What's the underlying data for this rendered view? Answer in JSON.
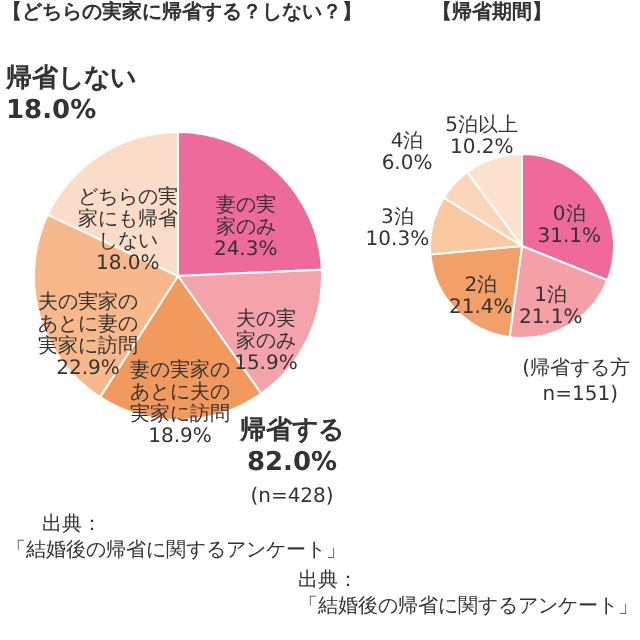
{
  "chart_data": [
    {
      "type": "pie",
      "title": "【どちらの実家に帰省する？しない？】",
      "categories": [
        "妻の実家のみ",
        "夫の実家のみ",
        "妻の実家のあとに夫の実家に訪問",
        "夫の実家のあとに妻の実家に訪問",
        "どちらの実家にも帰省しない"
      ],
      "values": [
        24.3,
        15.9,
        18.9,
        22.9,
        18.0
      ],
      "value_labels": [
        "24.3%",
        "15.9%",
        "18.9%",
        "22.9%",
        "18.0%"
      ],
      "colors": [
        "#ee6a9a",
        "#f5a3ab",
        "#f29a5e",
        "#f7b98c",
        "#fbdcc8"
      ],
      "annotations": [
        "帰省しない",
        "18.0%",
        "帰省する",
        "82.0%",
        "(n=428)",
        "出典：",
        "「結婚後の帰省に関するアンケート」"
      ]
    },
    {
      "type": "pie",
      "title": "【帰省期間】",
      "categories": [
        "0泊",
        "1泊",
        "2泊",
        "3泊",
        "4泊",
        "5泊以上"
      ],
      "values": [
        31.1,
        21.1,
        21.4,
        10.3,
        6.0,
        10.2
      ],
      "value_labels": [
        "31.1%",
        "21.1%",
        "21.4%",
        "10.3%",
        "6.0%",
        "10.2%"
      ],
      "colors": [
        "#ef6a98",
        "#f5a0a6",
        "#f39f68",
        "#f9c9a2",
        "#fbd6b8",
        "#fde3cf"
      ],
      "annotations": [
        "(帰省する方",
        "n=151)",
        "出典：",
        "「結婚後の帰省に関するアンケート」"
      ]
    }
  ]
}
